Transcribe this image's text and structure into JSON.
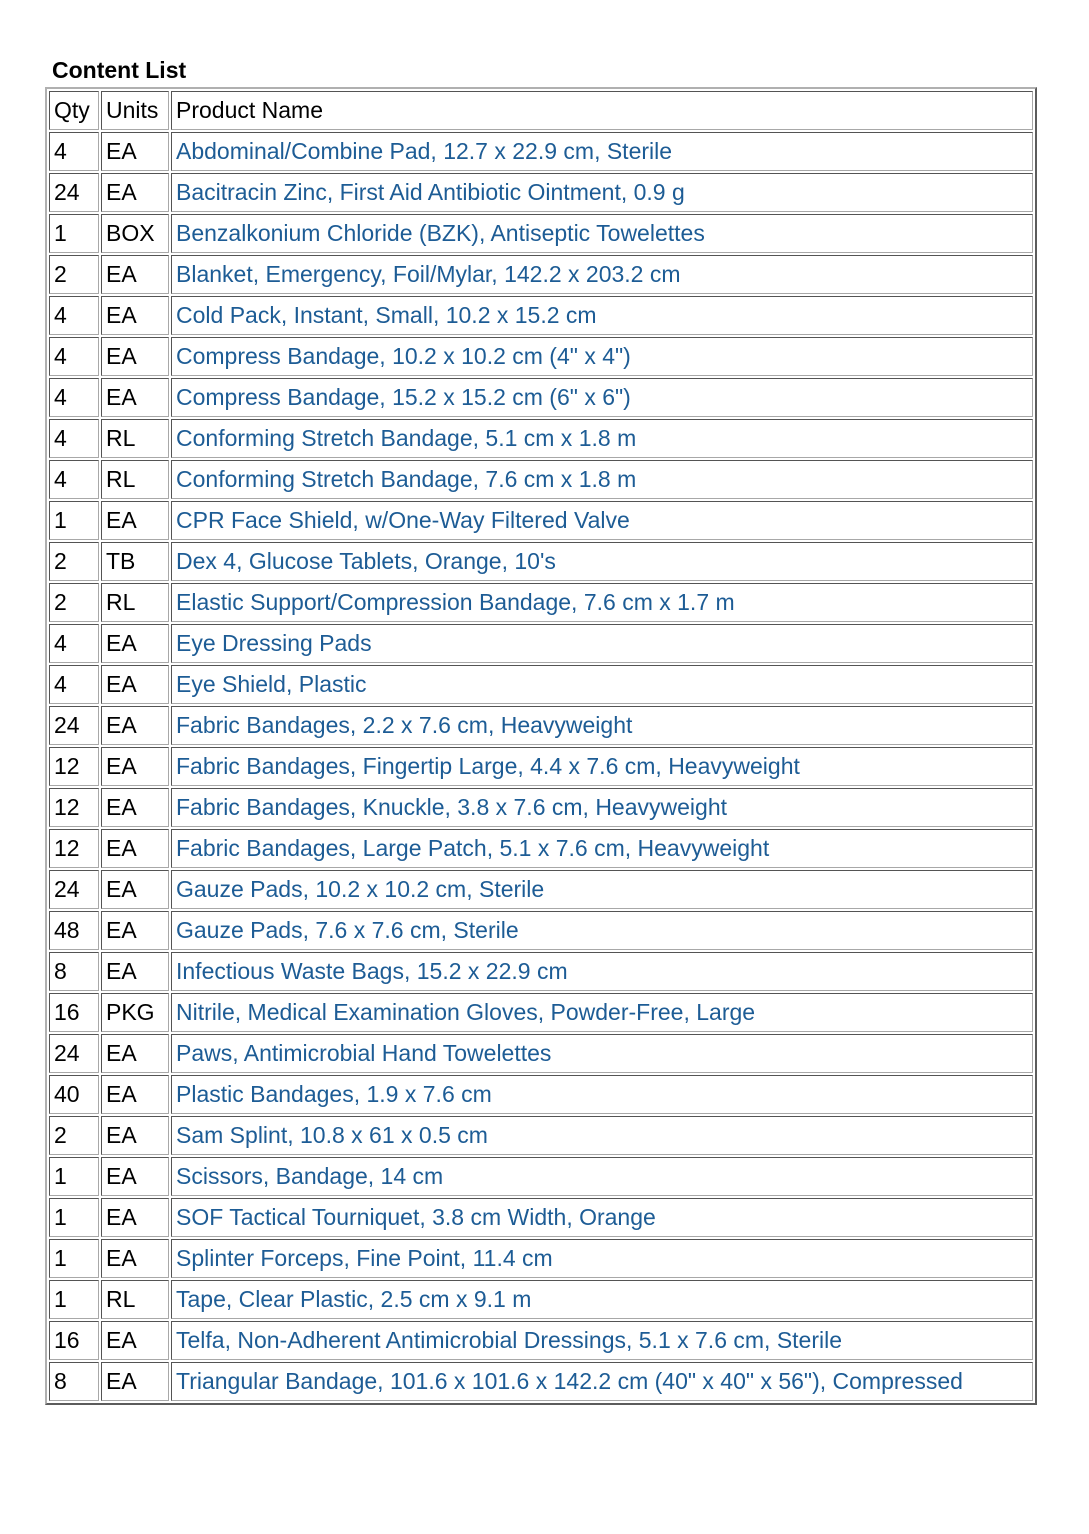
{
  "title": "Content List",
  "columns": {
    "qty": "Qty",
    "units": "Units",
    "product": "Product Name"
  },
  "colors": {
    "product_text": "#1d5c95",
    "border": "#a8a8a8"
  },
  "rows": [
    {
      "qty": "4",
      "units": "EA",
      "product": "Abdominal/Combine Pad, 12.7 x 22.9 cm, Sterile"
    },
    {
      "qty": "24",
      "units": "EA",
      "product": "Bacitracin Zinc, First Aid Antibiotic Ointment, 0.9 g"
    },
    {
      "qty": "1",
      "units": "BOX",
      "product": "Benzalkonium Chloride (BZK), Antiseptic Towelettes"
    },
    {
      "qty": "2",
      "units": "EA",
      "product": "Blanket, Emergency, Foil/Mylar, 142.2 x 203.2 cm"
    },
    {
      "qty": "4",
      "units": "EA",
      "product": "Cold Pack, Instant, Small, 10.2 x 15.2 cm"
    },
    {
      "qty": "4",
      "units": "EA",
      "product": "Compress Bandage, 10.2 x 10.2 cm (4\" x 4\")"
    },
    {
      "qty": "4",
      "units": "EA",
      "product": "Compress Bandage, 15.2 x 15.2 cm (6\" x 6\")"
    },
    {
      "qty": "4",
      "units": "RL",
      "product": "Conforming Stretch Bandage, 5.1 cm x 1.8 m"
    },
    {
      "qty": "4",
      "units": "RL",
      "product": "Conforming Stretch Bandage, 7.6 cm x 1.8 m"
    },
    {
      "qty": "1",
      "units": "EA",
      "product": "CPR Face Shield, w/One-Way Filtered Valve"
    },
    {
      "qty": "2",
      "units": "TB",
      "product": "Dex 4, Glucose Tablets, Orange, 10's"
    },
    {
      "qty": "2",
      "units": "RL",
      "product": "Elastic Support/Compression Bandage, 7.6 cm x 1.7 m"
    },
    {
      "qty": "4",
      "units": "EA",
      "product": "Eye Dressing Pads"
    },
    {
      "qty": "4",
      "units": "EA",
      "product": "Eye Shield, Plastic"
    },
    {
      "qty": "24",
      "units": "EA",
      "product": "Fabric Bandages, 2.2 x 7.6 cm, Heavyweight"
    },
    {
      "qty": "12",
      "units": "EA",
      "product": "Fabric Bandages, Fingertip Large, 4.4 x 7.6 cm, Heavyweight"
    },
    {
      "qty": "12",
      "units": "EA",
      "product": "Fabric Bandages, Knuckle, 3.8 x 7.6 cm, Heavyweight"
    },
    {
      "qty": "12",
      "units": "EA",
      "product": "Fabric Bandages, Large Patch, 5.1 x 7.6 cm, Heavyweight"
    },
    {
      "qty": "24",
      "units": "EA",
      "product": "Gauze Pads, 10.2 x 10.2 cm, Sterile"
    },
    {
      "qty": "48",
      "units": "EA",
      "product": "Gauze Pads, 7.6 x 7.6 cm, Sterile"
    },
    {
      "qty": "8",
      "units": "EA",
      "product": "Infectious Waste Bags, 15.2 x 22.9 cm"
    },
    {
      "qty": "16",
      "units": "PKG",
      "product": "Nitrile, Medical Examination Gloves, Powder-Free, Large"
    },
    {
      "qty": "24",
      "units": "EA",
      "product": "Paws, Antimicrobial Hand Towelettes"
    },
    {
      "qty": "40",
      "units": "EA",
      "product": "Plastic Bandages, 1.9 x 7.6 cm"
    },
    {
      "qty": "2",
      "units": "EA",
      "product": "Sam Splint, 10.8 x 61 x 0.5 cm"
    },
    {
      "qty": "1",
      "units": "EA",
      "product": "Scissors, Bandage, 14 cm"
    },
    {
      "qty": "1",
      "units": "EA",
      "product": "SOF Tactical Tourniquet, 3.8 cm Width, Orange"
    },
    {
      "qty": "1",
      "units": "EA",
      "product": "Splinter Forceps, Fine Point, 11.4 cm"
    },
    {
      "qty": "1",
      "units": "RL",
      "product": "Tape, Clear Plastic, 2.5 cm x 9.1 m"
    },
    {
      "qty": "16",
      "units": "EA",
      "product": "Telfa, Non-Adherent Antimicrobial Dressings, 5.1 x 7.6 cm, Sterile"
    },
    {
      "qty": "8",
      "units": "EA",
      "product": "Triangular Bandage, 101.6 x 101.6 x 142.2 cm (40\" x 40\" x 56\"), Compressed"
    }
  ]
}
